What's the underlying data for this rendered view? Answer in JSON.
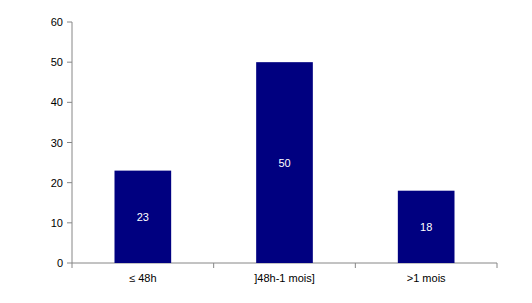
{
  "chart_data": {
    "type": "bar",
    "categories": [
      "≤ 48h",
      "]48h-1 mois]",
      ">1 mois"
    ],
    "values": [
      23,
      50,
      18
    ],
    "color": "#000080",
    "ylim": [
      0,
      60
    ],
    "yticks": [
      0,
      10,
      20,
      30,
      40,
      50,
      60
    ],
    "grid": false,
    "data_labels": true
  }
}
